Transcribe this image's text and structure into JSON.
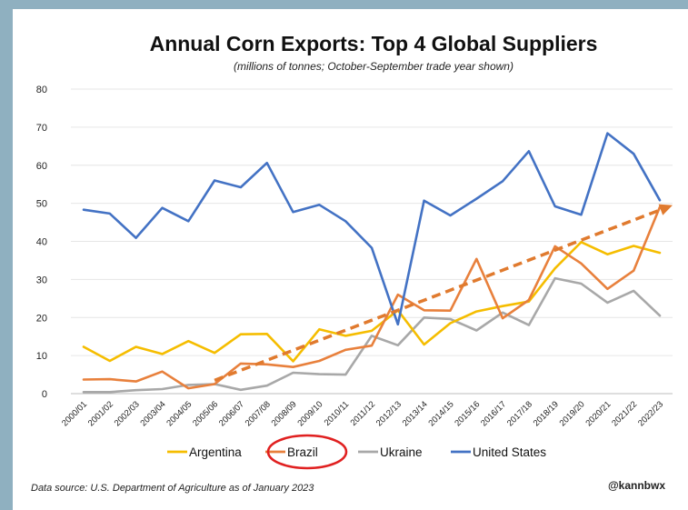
{
  "chart_data": {
    "type": "line",
    "title": "Annual Corn Exports: Top 4 Global Suppliers",
    "subtitle": "(millions of tonnes; October-September trade year shown)",
    "categories": [
      "2000/01",
      "2001/02",
      "2002/03",
      "2003/04",
      "2004/05",
      "2005/06",
      "2006/07",
      "2007/08",
      "2008/09",
      "2009/10",
      "2010/11",
      "2011/12",
      "2012/13",
      "2013/14",
      "2014/15",
      "2015/16",
      "2016/17",
      "2017/18",
      "2018/19",
      "2019/20",
      "2020/21",
      "2021/22",
      "2022/23"
    ],
    "y_ticks": [
      "0",
      "10",
      "20",
      "30",
      "40",
      "50",
      "60",
      "70",
      "80"
    ],
    "ylim": [
      0,
      80
    ],
    "grid": true,
    "legend_position": "bottom",
    "series": [
      {
        "name": "Argentina",
        "color": "#f5bd00",
        "values": [
          12.3,
          8.6,
          12.3,
          10.4,
          13.8,
          10.7,
          15.6,
          15.7,
          8.5,
          16.9,
          15.2,
          16.5,
          21.9,
          12.9,
          18.5,
          21.6,
          23.0,
          24.2,
          32.9,
          39.8,
          36.6,
          38.8,
          37.0
        ]
      },
      {
        "name": "Brazil",
        "color": "#e8803c",
        "values": [
          3.7,
          3.8,
          3.2,
          5.8,
          1.4,
          2.5,
          7.9,
          7.7,
          7.0,
          8.6,
          11.5,
          12.6,
          26.0,
          21.9,
          21.8,
          35.4,
          19.8,
          24.6,
          38.7,
          34.2,
          27.5,
          32.3,
          49.0
        ]
      },
      {
        "name": "Ukraine",
        "color": "#a8a8a8",
        "values": [
          0.4,
          0.4,
          0.9,
          1.2,
          2.3,
          2.5,
          1.0,
          2.1,
          5.5,
          5.1,
          5.0,
          15.2,
          12.7,
          20.0,
          19.6,
          16.6,
          21.3,
          18.0,
          30.3,
          28.9,
          23.9,
          27.0,
          20.5
        ]
      },
      {
        "name": "United States",
        "color": "#4372c4",
        "values": [
          48.3,
          47.3,
          40.9,
          48.8,
          45.3,
          56.0,
          54.2,
          60.6,
          47.7,
          49.6,
          45.3,
          38.3,
          18.2,
          50.7,
          46.8,
          51.2,
          55.8,
          63.7,
          49.2,
          47.0,
          68.4,
          63.0,
          50.8
        ]
      }
    ],
    "trend_arrow": {
      "color": "#e07a2e",
      "from": {
        "x": "2005/06",
        "y": 3.5
      },
      "to": {
        "x": "2022/23",
        "y": 49.5
      }
    },
    "highlight": {
      "series": "Brazil",
      "color": "#e02020"
    }
  },
  "footer": {
    "source": "Data source: U.S. Department of Agriculture as of January 2023",
    "handle": "@kannbwx"
  }
}
